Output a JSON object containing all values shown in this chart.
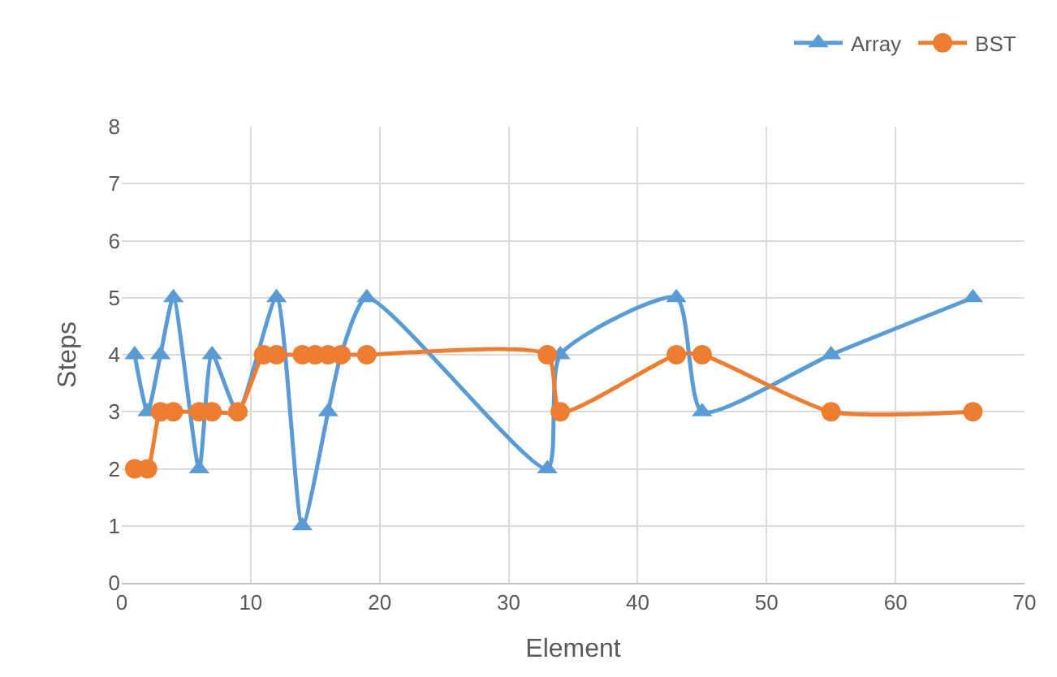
{
  "chart_data": {
    "type": "line",
    "xlabel": "Element",
    "ylabel": "Steps",
    "xlim": [
      0,
      70
    ],
    "xticks": [
      0,
      10,
      20,
      30,
      40,
      50,
      60,
      70
    ],
    "ylim": [
      0,
      8
    ],
    "yticks": [
      0,
      1,
      2,
      3,
      4,
      5,
      6,
      7,
      8
    ],
    "grid": true,
    "legend": "top right",
    "line_style": "solid",
    "series": [
      {
        "name": "Array",
        "color": "#5b9bd5",
        "marker": "triangle",
        "x": [
          1,
          2,
          3,
          4,
          6,
          7,
          9,
          12,
          14,
          16,
          17,
          19,
          33,
          34,
          43,
          45,
          55,
          66
        ],
        "values": [
          4,
          3,
          4,
          5,
          2,
          4,
          3,
          5,
          1,
          3,
          4,
          5,
          2,
          4,
          5,
          3,
          4,
          5
        ]
      },
      {
        "name": "BST",
        "color": "#ed7d31",
        "marker": "circle",
        "x": [
          1,
          2,
          3,
          4,
          6,
          7,
          9,
          11,
          12,
          14,
          15,
          16,
          17,
          19,
          33,
          34,
          43,
          45,
          55,
          66
        ],
        "values": [
          2,
          2,
          3,
          3,
          3,
          3,
          3,
          4,
          4,
          4,
          4,
          4,
          4,
          4,
          4,
          3,
          4,
          4,
          3,
          3
        ]
      }
    ]
  }
}
